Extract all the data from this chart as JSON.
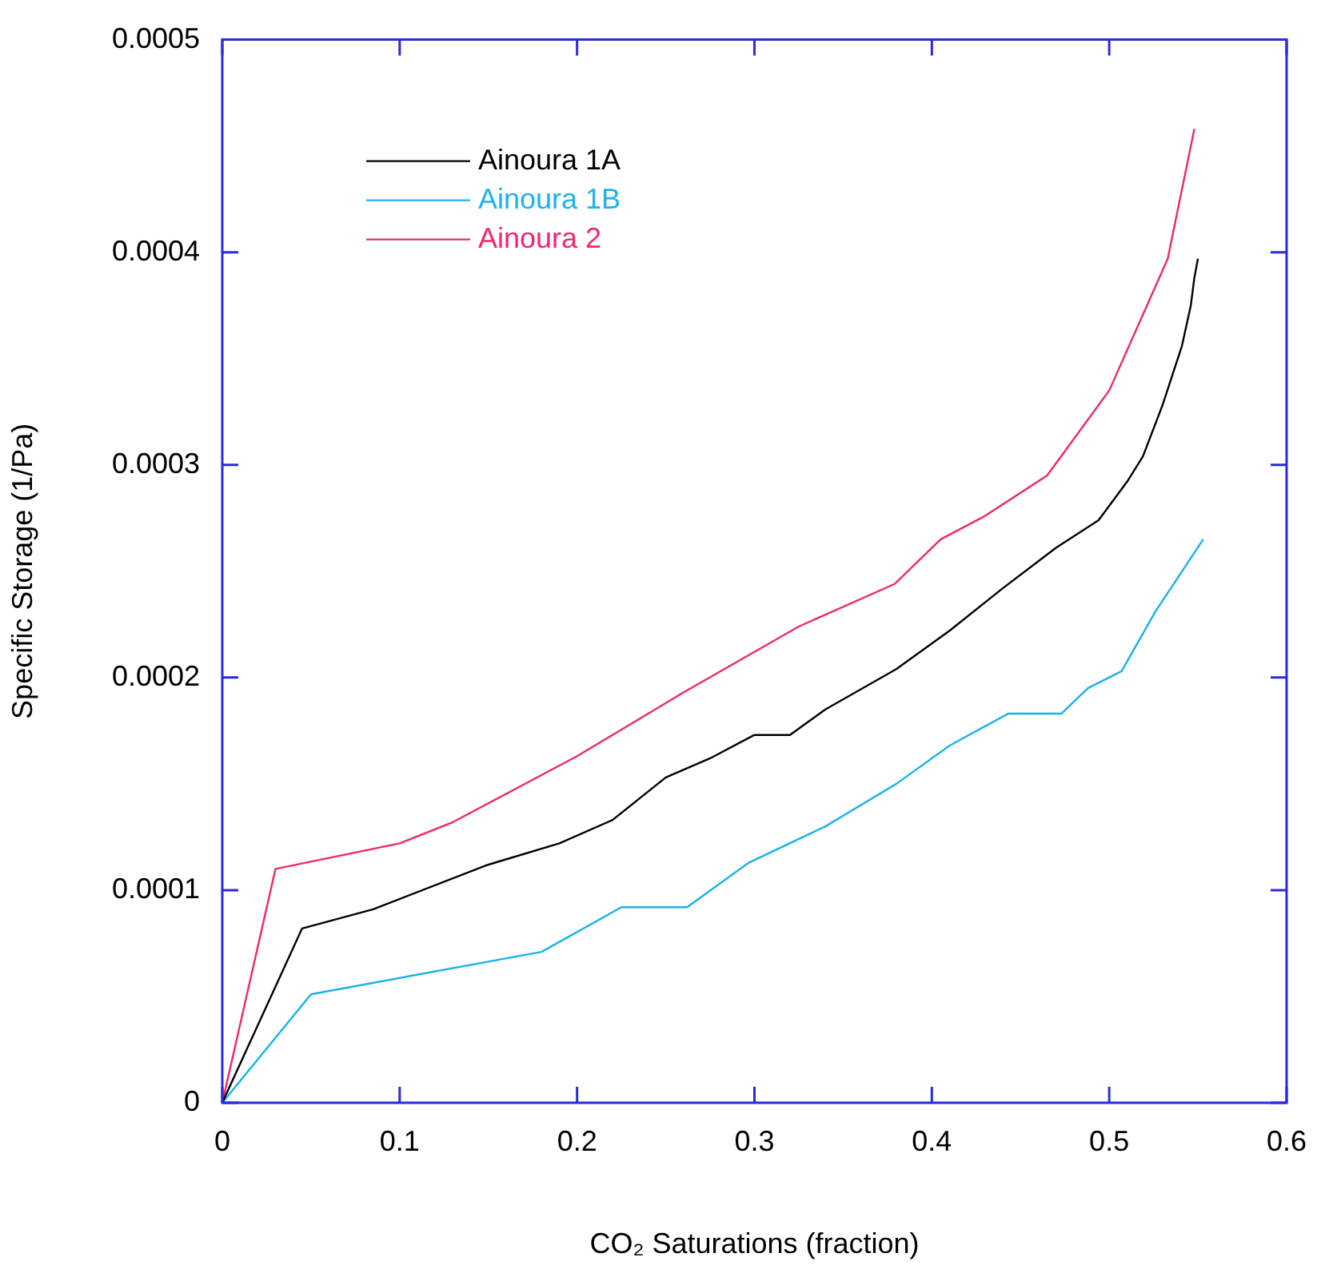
{
  "chart_data": {
    "type": "line",
    "xlabel": "CO₂ Saturations (fraction)",
    "ylabel": "Specific Storage (1/Pa)",
    "xlim": [
      0,
      0.6
    ],
    "xticks": [
      0,
      0.1,
      0.2,
      0.3,
      0.4,
      0.5,
      0.6
    ],
    "ylim": [
      0,
      0.0005
    ],
    "yticks": [
      0,
      0.0001,
      0.0002,
      0.0003,
      0.0004,
      0.0005
    ],
    "grid": false,
    "legend": "top left",
    "marker": "none",
    "line_style": "solid",
    "series": [
      {
        "name": "Ainoura 1A",
        "color": "#000000",
        "x": [
          0,
          0.045,
          0.085,
          0.15,
          0.19,
          0.22,
          0.25,
          0.275,
          0.3,
          0.32,
          0.34,
          0.38,
          0.41,
          0.44,
          0.47,
          0.494,
          0.51,
          0.519,
          0.53,
          0.541,
          0.546,
          0.548,
          0.55
        ],
        "values": [
          0,
          8.2e-05,
          9.1e-05,
          0.000112,
          0.000122,
          0.000133,
          0.000153,
          0.000162,
          0.000173,
          0.000173,
          0.000185,
          0.000204,
          0.000222,
          0.000242,
          0.000261,
          0.000274,
          0.000292,
          0.000304,
          0.000328,
          0.000356,
          0.000375,
          0.000388,
          0.000397
        ]
      },
      {
        "name": "Ainoura 1B",
        "color": "#1ab2e8",
        "x": [
          0,
          0.05,
          0.18,
          0.225,
          0.262,
          0.297,
          0.34,
          0.38,
          0.41,
          0.443,
          0.473,
          0.488,
          0.507,
          0.526,
          0.553
        ],
        "values": [
          0,
          5.1e-05,
          7.1e-05,
          9.2e-05,
          9.2e-05,
          0.000113,
          0.00013,
          0.00015,
          0.000168,
          0.000183,
          0.000183,
          0.000195,
          0.000203,
          0.000231,
          0.000265
        ]
      },
      {
        "name": "Ainoura 2",
        "color": "#f0266e",
        "x": [
          0,
          0.03,
          0.1,
          0.13,
          0.2,
          0.26,
          0.325,
          0.379,
          0.405,
          0.43,
          0.465,
          0.5,
          0.533,
          0.548
        ],
        "values": [
          0,
          0.00011,
          0.000122,
          0.000132,
          0.000163,
          0.000193,
          0.000224,
          0.000244,
          0.000265,
          0.000276,
          0.000295,
          0.000335,
          0.000397,
          0.000458
        ]
      }
    ]
  }
}
